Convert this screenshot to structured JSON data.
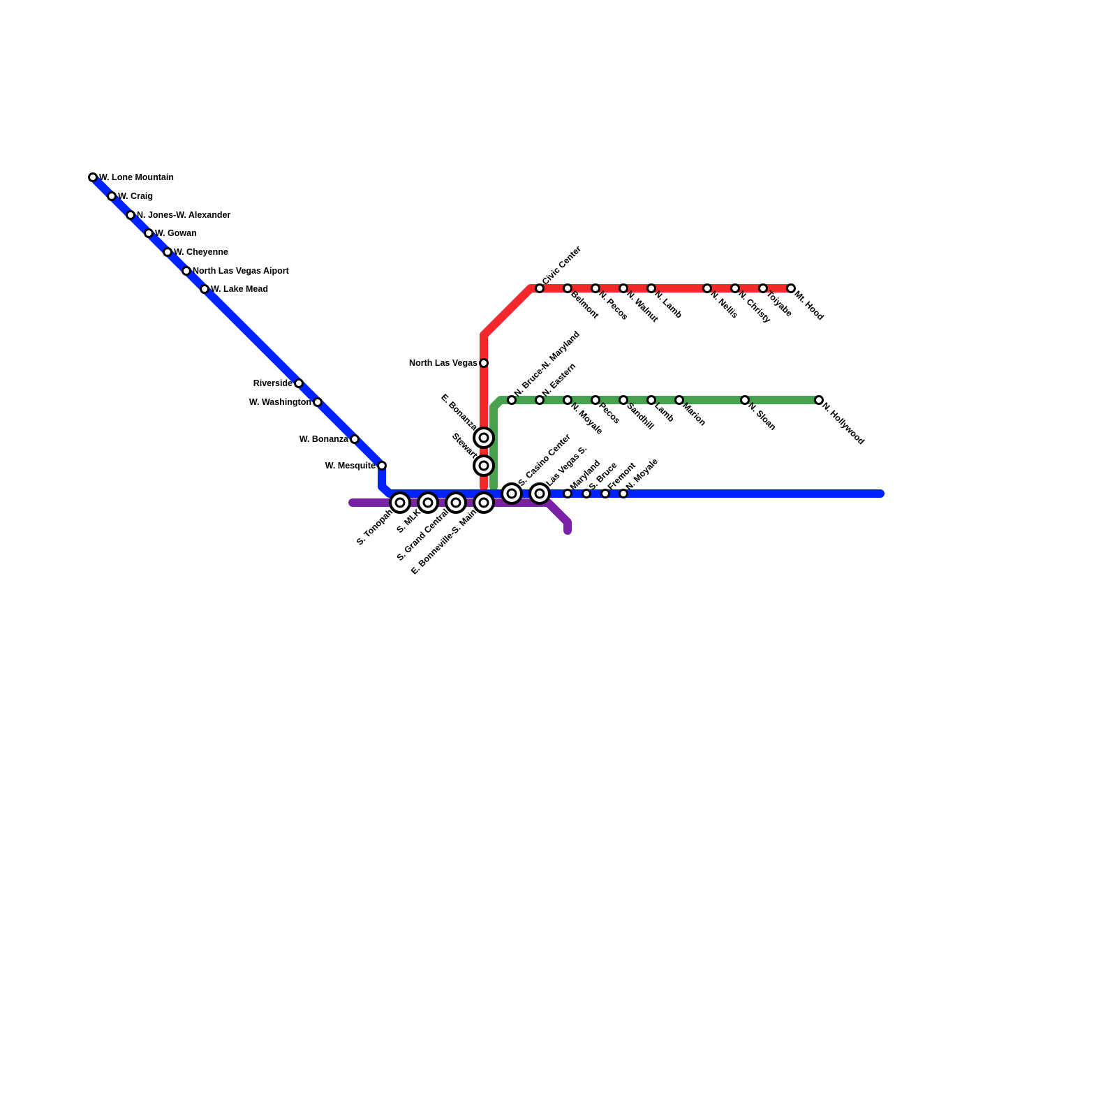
{
  "lines": [
    {
      "id": "blue",
      "color": "#0022ff",
      "stations": [
        "W. Lone Mountain",
        "W. Craig",
        "N. Jones-W. Alexander",
        "W. Gowan",
        "W. Cheyenne",
        "North Las Vegas Aiport",
        "W. Lake Mead",
        "Riverside",
        "W. Washington",
        "W. Bonanza",
        "W. Mesquite",
        "S. Casino Center",
        "Las Vegas S.",
        "Maryland",
        "S. Bruce",
        "Fremont",
        "N. Moyale"
      ]
    },
    {
      "id": "red",
      "color": "#f2282a",
      "stations": [
        "North Las Vegas",
        "E. Bonanza",
        "Stewart",
        "Civic Center",
        "Belmont",
        "N. Pecos",
        "N. Walnut",
        "N. Lamb",
        "N. Nellis",
        "N. Christy",
        "Toiyabe",
        "Mt. Hood"
      ]
    },
    {
      "id": "green",
      "color": "#46a24e",
      "stations": [
        "N. Bruce-N. Maryland",
        "N. Eastern",
        "N. Moyale",
        "Pecos",
        "Sandhill",
        "Lamb",
        "Marion",
        "N. Sloan",
        "N. Hollywood"
      ]
    },
    {
      "id": "purple",
      "color": "#7a22a6",
      "stations": [
        "S. Tonopah",
        "S. MLK",
        "S. Grand Central",
        "E. Bonneville-S. Main"
      ]
    }
  ]
}
